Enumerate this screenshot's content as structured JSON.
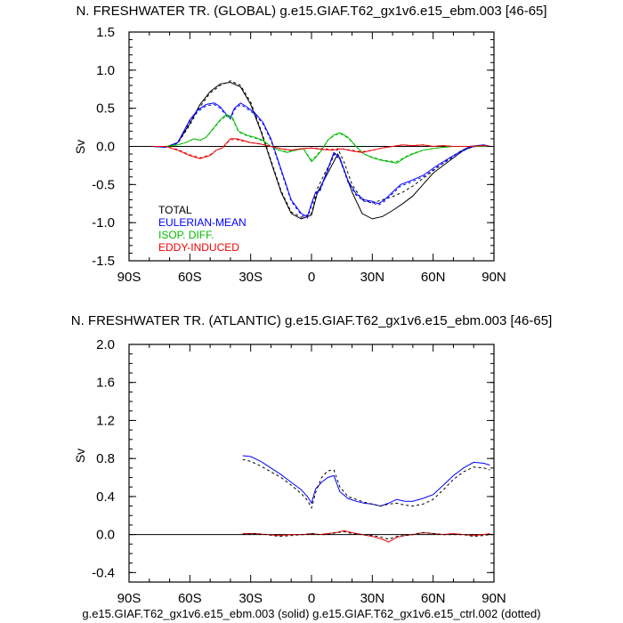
{
  "colors": {
    "total": "#000000",
    "eulerian": "#0000ff",
    "isop": "#00bb00",
    "eddy": "#ee0000"
  },
  "footer": "g.e15.GIAF.T62_gx1v6.e15_ebm.003 (solid) g.e15.GIAF.T62_gx1v6.e15_ctrl.002 (dotted)",
  "chart_data": [
    {
      "type": "line",
      "title": "N. FRESHWATER TR. (GLOBAL) g.e15.GIAF.T62_gx1v6.e15_ebm.003 [46-65]",
      "ylabel": "Sv",
      "xlim": [
        -90,
        90
      ],
      "ylim": [
        -1.5,
        1.5
      ],
      "xticks": [
        -90,
        -60,
        -30,
        0,
        30,
        60,
        90
      ],
      "xtick_labels": [
        "90S",
        "60S",
        "30S",
        "0",
        "30N",
        "60N",
        "90N"
      ],
      "yticks": [
        -1.5,
        -1.0,
        -0.5,
        0.0,
        0.5,
        1.0,
        1.5
      ],
      "ytick_labels": [
        "-1.5",
        "-1.0",
        "-0.5",
        "0.0",
        "0.5",
        "1.0",
        "1.5"
      ],
      "legend": [
        {
          "label": "TOTAL",
          "key": "total"
        },
        {
          "label": "EULERIAN-MEAN",
          "key": "eulerian"
        },
        {
          "label": "ISOP. DIFF.",
          "key": "isop"
        },
        {
          "label": "EDDY-INDUCED",
          "key": "eddy"
        }
      ],
      "series": [
        {
          "name": "TOTAL",
          "color_key": "total",
          "style": "solid",
          "x": [
            -78,
            -72,
            -66,
            -60,
            -55,
            -50,
            -45,
            -40,
            -35,
            -30,
            -25,
            -20,
            -15,
            -10,
            -5,
            0,
            3,
            6,
            10,
            13,
            16,
            20,
            25,
            30,
            35,
            40,
            45,
            50,
            55,
            60,
            65,
            70,
            75,
            80,
            85,
            88
          ],
          "y": [
            0.0,
            -0.01,
            0.05,
            0.3,
            0.55,
            0.72,
            0.82,
            0.84,
            0.78,
            0.55,
            0.2,
            -0.2,
            -0.6,
            -0.88,
            -0.95,
            -0.9,
            -0.6,
            -0.45,
            -0.25,
            -0.1,
            -0.3,
            -0.6,
            -0.88,
            -0.95,
            -0.92,
            -0.84,
            -0.75,
            -0.65,
            -0.5,
            -0.35,
            -0.25,
            -0.15,
            -0.05,
            0.0,
            0.01,
            0.0
          ]
        },
        {
          "name": "TOTAL (ctrl)",
          "color_key": "total",
          "style": "dotted",
          "x": [
            -78,
            -72,
            -66,
            -60,
            -55,
            -50,
            -45,
            -40,
            -35,
            -30,
            -25,
            -20,
            -15,
            -10,
            -5,
            0,
            3,
            6,
            10,
            13,
            16,
            20,
            25,
            30,
            35,
            40,
            45,
            50,
            55,
            60,
            65,
            70,
            75,
            80,
            85,
            88
          ],
          "y": [
            0.0,
            -0.01,
            0.04,
            0.28,
            0.52,
            0.7,
            0.8,
            0.86,
            0.8,
            0.58,
            0.22,
            -0.18,
            -0.58,
            -0.86,
            -0.93,
            -0.88,
            -0.55,
            -0.38,
            -0.18,
            -0.03,
            -0.2,
            -0.5,
            -0.7,
            -0.74,
            -0.7,
            -0.66,
            -0.6,
            -0.52,
            -0.42,
            -0.32,
            -0.22,
            -0.12,
            -0.04,
            0.0,
            0.01,
            0.0
          ]
        },
        {
          "name": "EULERIAN-MEAN",
          "color_key": "eulerian",
          "style": "solid",
          "x": [
            -78,
            -72,
            -66,
            -60,
            -56,
            -52,
            -48,
            -45,
            -42,
            -40,
            -38,
            -35,
            -32,
            -28,
            -24,
            -20,
            -15,
            -10,
            -5,
            -2,
            0,
            2,
            4,
            8,
            11,
            14,
            18,
            22,
            26,
            30,
            33,
            36,
            40,
            44,
            48,
            55,
            62,
            70,
            78,
            85,
            88
          ],
          "y": [
            0.0,
            -0.01,
            0.05,
            0.35,
            0.48,
            0.55,
            0.57,
            0.52,
            0.42,
            0.38,
            0.5,
            0.57,
            0.52,
            0.44,
            0.32,
            0.1,
            -0.3,
            -0.7,
            -0.88,
            -0.92,
            -0.75,
            -0.6,
            -0.58,
            -0.3,
            -0.08,
            -0.15,
            -0.45,
            -0.62,
            -0.7,
            -0.72,
            -0.75,
            -0.7,
            -0.6,
            -0.5,
            -0.46,
            -0.38,
            -0.25,
            -0.12,
            0.0,
            0.02,
            0.0
          ]
        },
        {
          "name": "EULERIAN-MEAN (ctrl)",
          "color_key": "eulerian",
          "style": "dotted",
          "x": [
            -78,
            -72,
            -66,
            -60,
            -56,
            -52,
            -48,
            -45,
            -42,
            -40,
            -38,
            -35,
            -32,
            -28,
            -24,
            -20,
            -15,
            -10,
            -5,
            -2,
            0,
            2,
            4,
            8,
            11,
            14,
            18,
            22,
            26,
            30,
            33,
            36,
            40,
            44,
            48,
            55,
            62,
            70,
            78,
            85,
            88
          ],
          "y": [
            0.0,
            -0.01,
            0.05,
            0.33,
            0.46,
            0.53,
            0.55,
            0.5,
            0.4,
            0.36,
            0.48,
            0.55,
            0.5,
            0.42,
            0.3,
            0.08,
            -0.32,
            -0.72,
            -0.9,
            -0.94,
            -0.78,
            -0.62,
            -0.6,
            -0.32,
            -0.1,
            -0.17,
            -0.47,
            -0.64,
            -0.72,
            -0.74,
            -0.77,
            -0.72,
            -0.62,
            -0.52,
            -0.48,
            -0.4,
            -0.27,
            -0.14,
            -0.01,
            0.01,
            0.0
          ]
        },
        {
          "name": "ISOP. DIFF.",
          "color_key": "isop",
          "style": "solid",
          "x": [
            -78,
            -72,
            -66,
            -62,
            -58,
            -55,
            -52,
            -48,
            -45,
            -42,
            -39,
            -36,
            -32,
            -28,
            -24,
            -20,
            -16,
            -12,
            -8,
            -4,
            0,
            2,
            5,
            8,
            11,
            14,
            18,
            22,
            26,
            30,
            34,
            38,
            42,
            46,
            50,
            55,
            62,
            70,
            78,
            85,
            88
          ],
          "y": [
            0.0,
            0.0,
            0.02,
            0.05,
            0.1,
            0.08,
            0.12,
            0.25,
            0.35,
            0.42,
            0.38,
            0.2,
            0.15,
            0.12,
            0.08,
            0.0,
            -0.05,
            -0.08,
            -0.05,
            -0.03,
            -0.2,
            -0.15,
            -0.05,
            0.08,
            0.15,
            0.18,
            0.12,
            0.0,
            -0.1,
            -0.15,
            -0.18,
            -0.2,
            -0.22,
            -0.15,
            -0.1,
            -0.05,
            -0.02,
            0.0,
            0.0,
            0.0,
            0.0
          ]
        },
        {
          "name": "ISOP. DIFF. (ctrl)",
          "color_key": "isop",
          "style": "dotted",
          "x": [
            -78,
            -72,
            -66,
            -62,
            -58,
            -55,
            -52,
            -48,
            -45,
            -42,
            -39,
            -36,
            -32,
            -28,
            -24,
            -20,
            -16,
            -12,
            -8,
            -4,
            0,
            2,
            5,
            8,
            11,
            14,
            18,
            22,
            26,
            30,
            34,
            38,
            42,
            46,
            50,
            55,
            62,
            70,
            78,
            85,
            88
          ],
          "y": [
            0.0,
            0.0,
            0.02,
            0.05,
            0.1,
            0.08,
            0.12,
            0.24,
            0.34,
            0.4,
            0.36,
            0.19,
            0.14,
            0.11,
            0.07,
            0.0,
            -0.05,
            -0.07,
            -0.05,
            -0.03,
            -0.18,
            -0.13,
            -0.04,
            0.08,
            0.14,
            0.17,
            0.11,
            0.0,
            -0.1,
            -0.14,
            -0.17,
            -0.19,
            -0.2,
            -0.14,
            -0.09,
            -0.05,
            -0.02,
            0.0,
            0.0,
            0.0,
            0.0
          ]
        },
        {
          "name": "EDDY-INDUCED",
          "color_key": "eddy",
          "style": "solid",
          "x": [
            -78,
            -72,
            -66,
            -60,
            -55,
            -50,
            -47,
            -44,
            -40,
            -37,
            -34,
            -30,
            -25,
            -20,
            -15,
            -10,
            -5,
            0,
            5,
            10,
            15,
            20,
            25,
            30,
            35,
            40,
            45,
            50,
            55,
            60,
            65,
            70,
            78,
            85,
            88
          ],
          "y": [
            0.0,
            0.0,
            -0.05,
            -0.12,
            -0.16,
            -0.12,
            -0.05,
            -0.02,
            0.1,
            0.1,
            0.08,
            0.05,
            0.03,
            0.0,
            -0.03,
            -0.05,
            -0.03,
            -0.02,
            -0.04,
            -0.05,
            -0.03,
            -0.06,
            -0.08,
            -0.05,
            -0.02,
            0.0,
            0.02,
            0.01,
            0.02,
            0.0,
            0.01,
            0.0,
            0.0,
            0.01,
            0.0
          ]
        },
        {
          "name": "EDDY-INDUCED (ctrl)",
          "color_key": "eddy",
          "style": "dotted",
          "x": [
            -78,
            -72,
            -66,
            -60,
            -55,
            -50,
            -47,
            -44,
            -40,
            -37,
            -34,
            -30,
            -25,
            -20,
            -15,
            -10,
            -5,
            0,
            5,
            10,
            15,
            20,
            25,
            30,
            35,
            40,
            45,
            50,
            55,
            60,
            65,
            70,
            78,
            85,
            88
          ],
          "y": [
            0.0,
            0.0,
            -0.04,
            -0.11,
            -0.15,
            -0.11,
            -0.05,
            -0.02,
            0.09,
            0.09,
            0.07,
            0.05,
            0.03,
            0.0,
            -0.03,
            -0.05,
            -0.03,
            -0.02,
            -0.03,
            -0.04,
            -0.03,
            -0.05,
            -0.07,
            -0.05,
            -0.02,
            0.0,
            0.02,
            0.01,
            0.02,
            0.0,
            0.01,
            0.0,
            0.0,
            0.01,
            0.0
          ]
        }
      ]
    },
    {
      "type": "line",
      "title": "N. FRESHWATER TR. (ATLANTIC) g.e15.GIAF.T62_gx1v6.e15_ebm.003 [46-65]",
      "ylabel": "Sv",
      "xlim": [
        -90,
        90
      ],
      "ylim": [
        -0.5,
        2.0
      ],
      "xticks": [
        -90,
        -60,
        -30,
        0,
        30,
        60,
        90
      ],
      "xtick_labels": [
        "90S",
        "60S",
        "30S",
        "0",
        "30N",
        "60N",
        "90N"
      ],
      "yticks": [
        -0.4,
        0.0,
        0.4,
        0.8,
        1.2,
        1.6,
        2.0
      ],
      "ytick_labels": [
        "-0.4",
        "0.0",
        "0.4",
        "0.8",
        "1.2",
        "1.6",
        "2.0"
      ],
      "series": [
        {
          "name": "EULERIAN-MEAN",
          "color_key": "eulerian",
          "style": "solid",
          "x": [
            -34,
            -30,
            -25,
            -20,
            -15,
            -10,
            -5,
            -2,
            0,
            2,
            5,
            8,
            11,
            14,
            18,
            22,
            26,
            30,
            34,
            38,
            42,
            46,
            50,
            55,
            60,
            65,
            70,
            75,
            80,
            85,
            88
          ],
          "y": [
            0.83,
            0.82,
            0.77,
            0.7,
            0.63,
            0.55,
            0.47,
            0.4,
            0.33,
            0.48,
            0.55,
            0.6,
            0.62,
            0.45,
            0.38,
            0.35,
            0.33,
            0.32,
            0.3,
            0.33,
            0.37,
            0.35,
            0.35,
            0.38,
            0.42,
            0.52,
            0.62,
            0.7,
            0.76,
            0.75,
            0.73
          ]
        },
        {
          "name": "EULERIAN-MEAN (ctrl)",
          "color_key": "total",
          "style": "dotted",
          "x": [
            -34,
            -30,
            -25,
            -20,
            -15,
            -10,
            -5,
            -2,
            0,
            2,
            5,
            8,
            11,
            14,
            18,
            22,
            26,
            30,
            34,
            38,
            42,
            46,
            50,
            55,
            60,
            65,
            70,
            75,
            80,
            85,
            88
          ],
          "y": [
            0.79,
            0.77,
            0.72,
            0.66,
            0.6,
            0.52,
            0.43,
            0.36,
            0.28,
            0.44,
            0.6,
            0.67,
            0.68,
            0.5,
            0.4,
            0.37,
            0.34,
            0.32,
            0.3,
            0.32,
            0.33,
            0.31,
            0.3,
            0.32,
            0.37,
            0.47,
            0.58,
            0.66,
            0.71,
            0.7,
            0.68
          ]
        },
        {
          "name": "EDDY-INDUCED",
          "color_key": "eddy",
          "style": "solid",
          "x": [
            -34,
            -28,
            -22,
            -16,
            -10,
            -4,
            0,
            4,
            8,
            12,
            16,
            20,
            25,
            30,
            35,
            38,
            42,
            46,
            50,
            55,
            60,
            65,
            70,
            75,
            80,
            85,
            88
          ],
          "y": [
            0.01,
            0.01,
            0.0,
            -0.01,
            0.0,
            0.0,
            0.01,
            0.0,
            0.01,
            0.02,
            0.04,
            0.02,
            0.0,
            -0.02,
            -0.05,
            -0.08,
            -0.03,
            -0.01,
            0.0,
            0.02,
            0.01,
            0.0,
            0.01,
            0.0,
            -0.01,
            0.0,
            0.01
          ]
        },
        {
          "name": "EDDY-INDUCED (ctrl)",
          "color_key": "total",
          "style": "dotted",
          "x": [
            -34,
            -28,
            -22,
            -16,
            -10,
            -4,
            0,
            4,
            8,
            12,
            16,
            20,
            25,
            30,
            35,
            38,
            42,
            46,
            50,
            55,
            60,
            65,
            70,
            75,
            80,
            85,
            88
          ],
          "y": [
            0.0,
            0.01,
            0.0,
            -0.02,
            -0.01,
            0.0,
            0.01,
            0.0,
            0.0,
            0.02,
            0.03,
            0.01,
            0.0,
            -0.01,
            -0.03,
            -0.05,
            -0.02,
            -0.01,
            0.0,
            0.02,
            0.01,
            0.0,
            0.0,
            0.0,
            -0.02,
            -0.01,
            0.0
          ]
        }
      ]
    }
  ]
}
